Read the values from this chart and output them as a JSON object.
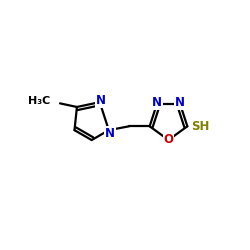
{
  "background_color": "#ffffff",
  "atom_colors": {
    "C": "#000000",
    "N": "#0000cc",
    "O": "#cc0000",
    "S": "#808000",
    "H": "#000000"
  },
  "bond_color": "#000000",
  "bond_width": 1.6,
  "font_size_atom": 8.5
}
